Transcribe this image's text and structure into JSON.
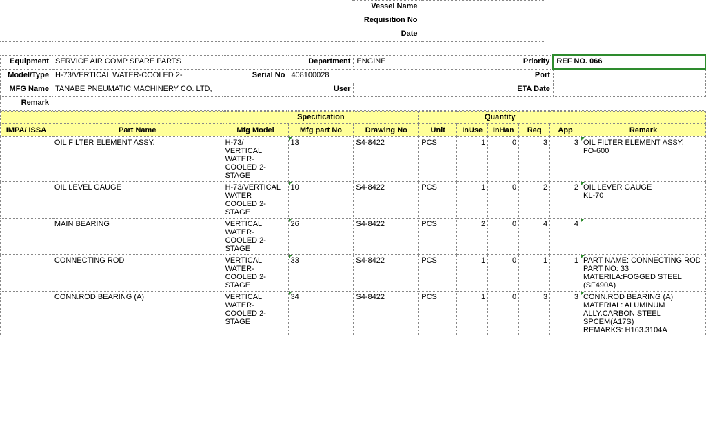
{
  "top": {
    "vessel_name_label": "Vessel Name",
    "requisition_no_label": "Requisition No",
    "date_label": "Date"
  },
  "info": {
    "equipment_label": "Equipment",
    "equipment": "SERVICE AIR COMP SPARE PARTS",
    "department_label": "Department",
    "department": "ENGINE",
    "priority_label": "Priority",
    "priority": "REF NO. 066",
    "model_type_label": "Model/Type",
    "model_type": "H-73/VERTICAL WATER-COOLED 2-",
    "serial_no_label": "Serial No",
    "serial_no": "408100028",
    "port_label": "Port",
    "mfg_name_label": "MFG Name",
    "mfg_name": "TANABE PNEUMATIC MACHINERY CO. LTD,",
    "user_label": "User",
    "eta_date_label": "ETA Date",
    "remark_label": "Remark"
  },
  "headers": {
    "spec": "Specification",
    "qty": "Quantity",
    "impa": "IMPA/ ISSA",
    "part_name": "Part Name",
    "mfg_model": "Mfg Model",
    "mfg_part_no": "Mfg part No",
    "drawing_no": "Drawing No",
    "unit": "Unit",
    "inuse": "InUse",
    "inhan": "InHan",
    "req": "Req",
    "app": "App",
    "remark": "Remark"
  },
  "rows": [
    {
      "part_name": "OIL FILTER ELEMENT ASSY.",
      "mfg_model": "H-73/\nVERTICAL WATER-COOLED 2-STAGE",
      "mfg_part_no": "13",
      "drawing_no": "S4-8422",
      "unit": "PCS",
      "inuse": "1",
      "inhan": "0",
      "req": "3",
      "app": "3",
      "remark": "OIL FILTER ELEMENT ASSY.\nFO-600"
    },
    {
      "part_name": "OIL LEVEL GAUGE",
      "mfg_model": "H-73/VERTICAL WATER COOLED 2-STAGE",
      "mfg_part_no": "10",
      "drawing_no": "S4-8422",
      "unit": "PCS",
      "inuse": "1",
      "inhan": "0",
      "req": "2",
      "app": "2",
      "remark": "OIL LEVER GAUGE\nKL-70"
    },
    {
      "part_name": "MAIN BEARING",
      "mfg_model": "VERTICAL WATER-COOLED 2-STAGE",
      "mfg_part_no": "26",
      "drawing_no": "S4-8422",
      "unit": "PCS",
      "inuse": "2",
      "inhan": "0",
      "req": "4",
      "app": "4",
      "remark": ""
    },
    {
      "part_name": "CONNECTING ROD",
      "mfg_model": "VERTICAL WATER-COOLED 2-STAGE",
      "mfg_part_no": "33",
      "drawing_no": "S4-8422",
      "unit": "PCS",
      "inuse": "1",
      "inhan": "0",
      "req": "1",
      "app": "1",
      "remark": "PART NAME: CONNECTING ROD\nPART NO: 33\nMATERILA:FOGGED STEEL\n(SF490A)"
    },
    {
      "part_name": "CONN.ROD BEARING (A)",
      "mfg_model": "VERTICAL WATER-COOLED 2-STAGE",
      "mfg_part_no": "34",
      "drawing_no": "S4-8422",
      "unit": "PCS",
      "inuse": "1",
      "inhan": "0",
      "req": "3",
      "app": "3",
      "remark": "CONN.ROD BEARING (A)\nMATERIAL: ALUMINUM ALLY.CARBON  STEEL\nSPCEM(A17S)\nREMARKS: H163.3104A"
    }
  ],
  "colors": {
    "header_bg": "#ffff99",
    "border": "#888888",
    "priority_border": "#2e8b2e"
  }
}
